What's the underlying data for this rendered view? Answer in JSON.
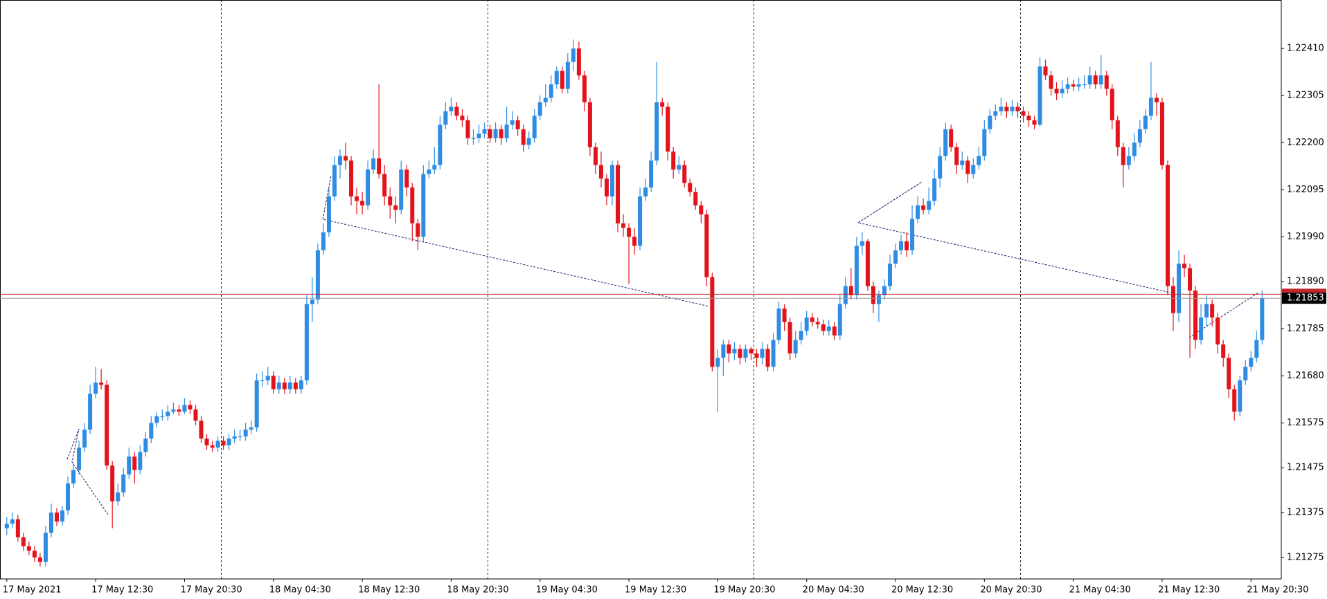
{
  "chart_data": {
    "type": "candlestick",
    "x": [
      "17 May 2021",
      null,
      null,
      null,
      null,
      null,
      null,
      null,
      null,
      null,
      null,
      null,
      null,
      null,
      null,
      null,
      "17 May 12:30",
      null,
      null,
      null,
      null,
      null,
      null,
      null,
      null,
      null,
      null,
      null,
      null,
      null,
      null,
      null,
      "17 May 20:30",
      null,
      null,
      null,
      null,
      null,
      null,
      null,
      null,
      null,
      null,
      null,
      null,
      null,
      null,
      null,
      "18 May 04:30",
      null,
      null,
      null,
      null,
      null,
      null,
      null,
      null,
      null,
      null,
      null,
      null,
      null,
      null,
      null,
      "18 May 12:30",
      null,
      null,
      null,
      null,
      null,
      null,
      null,
      null,
      null,
      null,
      null,
      null,
      null,
      null,
      null,
      "18 May 20:30",
      null,
      null,
      null,
      null,
      null,
      null,
      null,
      null,
      null,
      null,
      null,
      null,
      null,
      null,
      null,
      "19 May 04:30",
      null,
      null,
      null,
      null,
      null,
      null,
      null,
      null,
      null,
      null,
      null,
      null,
      null,
      null,
      null,
      "19 May 12:30",
      null,
      null,
      null,
      null,
      null,
      null,
      null,
      null,
      null,
      null,
      null,
      null,
      null,
      null,
      null,
      "19 May 20:30",
      null,
      null,
      null,
      null,
      null,
      null,
      null,
      null,
      null,
      null,
      null,
      null,
      null,
      null,
      null,
      "20 May 04:30",
      null,
      null,
      null,
      null,
      null,
      null,
      null,
      null,
      null,
      null,
      null,
      null,
      null,
      null,
      null,
      "20 May 12:30",
      null,
      null,
      null,
      null,
      null,
      null,
      null,
      null,
      null,
      null,
      null,
      null,
      null,
      null,
      null,
      "20 May 20:30",
      null,
      null,
      null,
      null,
      null,
      null,
      null,
      null,
      null,
      null,
      null,
      null,
      null,
      null,
      null,
      "21 May 04:30",
      null,
      null,
      null,
      null,
      null,
      null,
      null,
      null,
      null,
      null,
      null,
      null,
      null,
      null,
      null,
      "21 May 12:30",
      null,
      null,
      null,
      null,
      null,
      null,
      null,
      null,
      null,
      null,
      null,
      null,
      null,
      null,
      null,
      "21 May 20:30",
      null,
      null
    ],
    "open": [
      1.2134,
      1.2135,
      1.2136,
      1.2132,
      1.213,
      1.2129,
      1.21275,
      1.21265,
      1.2133,
      1.21375,
      1.21355,
      1.2138,
      1.2144,
      1.2147,
      1.2152,
      1.2156,
      1.2164,
      1.21665,
      1.2166,
      1.2148,
      1.214,
      1.2142,
      1.2146,
      1.215,
      1.2147,
      1.2151,
      1.2154,
      1.21575,
      1.2159,
      1.2159,
      1.216,
      1.21605,
      1.216,
      1.21615,
      1.21605,
      1.2158,
      1.2154,
      1.21525,
      1.2152,
      1.21535,
      1.21525,
      1.2154,
      1.21545,
      1.21545,
      1.2156,
      1.21565,
      1.2167,
      1.2167,
      1.2168,
      1.2165,
      1.21665,
      1.2165,
      1.21665,
      1.2165,
      1.2167,
      1.2184,
      1.2185,
      1.2196,
      1.22,
      1.2208,
      1.2215,
      1.2217,
      1.2216,
      1.2208,
      1.2207,
      1.2206,
      1.2214,
      1.22165,
      1.2213,
      1.2208,
      1.2206,
      1.2205,
      1.2214,
      1.221,
      1.2202,
      1.2199,
      1.2213,
      1.2214,
      1.2215,
      1.2224,
      1.2227,
      1.2228,
      1.2226,
      1.2225,
      1.2221,
      1.2221,
      1.2222,
      1.2223,
      1.2221,
      1.2223,
      1.2221,
      1.2224,
      1.2225,
      1.2223,
      1.22195,
      1.2221,
      1.2226,
      1.2229,
      1.223,
      1.2233,
      1.2236,
      1.2232,
      1.2238,
      1.2241,
      1.2235,
      1.2229,
      1.2219,
      1.2215,
      1.2212,
      1.2208,
      1.2215,
      1.2202,
      1.2201,
      1.2199,
      1.2197,
      1.2208,
      1.221,
      1.2216,
      1.2229,
      1.2228,
      1.2218,
      1.2214,
      1.2215,
      1.2211,
      1.2209,
      1.2206,
      1.2204,
      1.219,
      1.217,
      1.2172,
      1.2175,
      1.2173,
      1.2174,
      1.2172,
      1.2174,
      1.2173,
      1.2172,
      1.2174,
      1.217,
      1.2176,
      1.2183,
      1.218,
      1.2173,
      1.2176,
      1.2178,
      1.2181,
      1.218,
      1.21795,
      1.2178,
      1.2179,
      1.2177,
      1.2184,
      1.2188,
      1.2186,
      1.2197,
      1.2198,
      1.2188,
      1.2184,
      1.2186,
      1.2188,
      1.2193,
      1.2196,
      1.2198,
      1.2196,
      1.2203,
      1.2206,
      1.2205,
      1.2207,
      1.2212,
      1.2217,
      1.2223,
      1.2219,
      1.2215,
      1.2216,
      1.2213,
      1.2215,
      1.2217,
      1.2223,
      1.2226,
      1.2227,
      1.2228,
      1.2227,
      1.2228,
      1.2227,
      1.2226,
      1.2225,
      1.2224,
      1.2237,
      1.2235,
      1.2232,
      1.2231,
      1.2232,
      1.2233,
      1.22325,
      1.2233,
      1.2233,
      1.2235,
      1.2233,
      1.2235,
      1.2232,
      1.2225,
      1.2219,
      1.2215,
      1.2217,
      1.222,
      1.2223,
      1.2226,
      1.223,
      1.2229,
      1.2215,
      1.2188,
      1.2182,
      1.2193,
      1.2192,
      1.2187,
      1.2176,
      1.2181,
      1.2184,
      1.2181,
      1.2175,
      1.2172,
      1.2165,
      1.216,
      1.2167,
      1.217,
      1.2172,
      1.2176
    ],
    "high": [
      1.21365,
      1.21375,
      1.2137,
      1.2133,
      1.2131,
      1.213,
      1.21285,
      1.21345,
      1.21395,
      1.21385,
      1.2139,
      1.21455,
      1.21485,
      1.21535,
      1.21575,
      1.2166,
      1.217,
      1.21695,
      1.2167,
      1.2149,
      1.2144,
      1.21475,
      1.2152,
      1.2151,
      1.21525,
      1.21555,
      1.2159,
      1.216,
      1.21605,
      1.21615,
      1.2162,
      1.21615,
      1.2163,
      1.21625,
      1.21615,
      1.2159,
      1.2155,
      1.21535,
      1.21545,
      1.21545,
      1.2155,
      1.2156,
      1.2156,
      1.21575,
      1.2158,
      1.21685,
      1.2169,
      1.217,
      1.2169,
      1.2168,
      1.21675,
      1.2168,
      1.21675,
      1.2168,
      1.2186,
      1.219,
      1.21975,
      1.2202,
      1.221,
      1.2217,
      1.22185,
      1.222,
      1.2217,
      1.221,
      1.2209,
      1.2216,
      1.22185,
      1.2233,
      1.2215,
      1.221,
      1.2208,
      1.2216,
      1.2215,
      1.2211,
      1.2203,
      1.2215,
      1.2216,
      1.2219,
      1.2226,
      1.2229,
      1.223,
      1.2229,
      1.22275,
      1.2226,
      1.2223,
      1.2224,
      1.22245,
      1.2224,
      1.22245,
      1.2224,
      1.2228,
      1.2227,
      1.2226,
      1.2224,
      1.22225,
      1.22275,
      1.22305,
      1.2233,
      1.2235,
      1.2237,
      1.2237,
      1.224,
      1.2243,
      1.22425,
      1.2236,
      1.223,
      1.222,
      1.2218,
      1.2213,
      1.2216,
      1.2216,
      1.2204,
      1.2202,
      1.2201,
      1.221,
      1.2212,
      1.2218,
      1.2238,
      1.223,
      1.2229,
      1.2219,
      1.2217,
      1.2216,
      1.2212,
      1.221,
      1.2207,
      1.2205,
      1.2191,
      1.2174,
      1.2176,
      1.2176,
      1.21755,
      1.2175,
      1.2175,
      1.21745,
      1.2174,
      1.21755,
      1.2175,
      1.21775,
      1.21845,
      1.2184,
      1.2181,
      1.2178,
      1.218,
      1.21825,
      1.2182,
      1.2181,
      1.21805,
      1.21805,
      1.218,
      1.2186,
      1.219,
      1.2192,
      1.2199,
      1.22,
      1.21985,
      1.2189,
      1.2187,
      1.21895,
      1.2195,
      1.21975,
      1.21995,
      1.22,
      1.2206,
      1.2208,
      1.22075,
      1.221,
      1.2214,
      1.2219,
      1.22245,
      1.2224,
      1.222,
      1.2218,
      1.2217,
      1.22165,
      1.2219,
      1.2225,
      1.22275,
      1.22285,
      1.223,
      1.2229,
      1.22295,
      1.2229,
      1.2228,
      1.2227,
      1.2226,
      1.2239,
      1.22385,
      1.2236,
      1.22335,
      1.2234,
      1.22345,
      1.2234,
      1.22345,
      1.2235,
      1.2237,
      1.2236,
      1.22395,
      1.2236,
      1.2233,
      1.2226,
      1.222,
      1.2219,
      1.2222,
      1.2225,
      1.22275,
      1.2238,
      1.2231,
      1.223,
      1.2216,
      1.219,
      1.2196,
      1.2195,
      1.2193,
      1.2188,
      1.2184,
      1.2186,
      1.2185,
      1.2182,
      1.2176,
      1.2173,
      1.2166,
      1.2168,
      1.21715,
      1.21735,
      1.2178,
      1.2187
    ],
    "low": [
      1.21325,
      1.2134,
      1.2131,
      1.2129,
      1.2128,
      1.21265,
      1.21255,
      1.21255,
      1.2132,
      1.21345,
      1.21345,
      1.2137,
      1.2143,
      1.2146,
      1.2151,
      1.2155,
      1.2163,
      1.2165,
      1.2147,
      1.2134,
      1.2139,
      1.2141,
      1.2145,
      1.2144,
      1.2146,
      1.215,
      1.2153,
      1.21565,
      1.2158,
      1.2158,
      1.21595,
      1.2159,
      1.21595,
      1.21595,
      1.2157,
      1.2153,
      1.21515,
      1.2151,
      1.2151,
      1.21515,
      1.21515,
      1.2153,
      1.21535,
      1.21535,
      1.2155,
      1.21555,
      1.21655,
      1.2166,
      1.2164,
      1.2164,
      1.2164,
      1.2164,
      1.2164,
      1.2164,
      1.2166,
      1.218,
      1.2184,
      1.2195,
      1.2199,
      1.2207,
      1.2212,
      1.2214,
      1.2206,
      1.2204,
      1.2204,
      1.2205,
      1.2213,
      1.2212,
      1.2206,
      1.2203,
      1.2202,
      1.2204,
      1.2208,
      1.2198,
      1.2196,
      1.2198,
      1.2212,
      1.2213,
      1.2214,
      1.2223,
      1.2226,
      1.2225,
      1.22235,
      1.22195,
      1.22195,
      1.222,
      1.2221,
      1.222,
      1.222,
      1.22195,
      1.222,
      1.2223,
      1.22215,
      1.2218,
      1.22185,
      1.222,
      1.2225,
      1.2228,
      1.2229,
      1.2232,
      1.2231,
      1.2231,
      1.2236,
      1.2234,
      1.2227,
      1.2217,
      1.2213,
      1.221,
      1.2206,
      1.2206,
      1.22,
      1.2199,
      1.21885,
      1.2195,
      1.2196,
      1.2207,
      1.2209,
      1.2215,
      1.2226,
      1.2216,
      1.2212,
      1.2213,
      1.221,
      1.2208,
      1.2205,
      1.2202,
      1.2188,
      1.2169,
      1.216,
      1.2168,
      1.2171,
      1.21715,
      1.21705,
      1.2171,
      1.21715,
      1.217,
      1.21705,
      1.2169,
      1.2169,
      1.2175,
      1.2178,
      1.21715,
      1.2172,
      1.2175,
      1.2177,
      1.2179,
      1.21785,
      1.2177,
      1.2177,
      1.2176,
      1.2176,
      1.2183,
      1.2185,
      1.2185,
      1.2195,
      1.2187,
      1.2182,
      1.218,
      1.2185,
      1.2187,
      1.2192,
      1.2195,
      1.21945,
      1.2195,
      1.2202,
      1.2204,
      1.2204,
      1.2206,
      1.221,
      1.2216,
      1.2218,
      1.2213,
      1.2214,
      1.2211,
      1.2212,
      1.2214,
      1.2216,
      1.2222,
      1.2225,
      1.2226,
      1.22255,
      1.2226,
      1.22255,
      1.22245,
      1.22235,
      1.2223,
      1.22235,
      1.2234,
      1.22305,
      1.22295,
      1.223,
      1.2231,
      1.22315,
      1.22315,
      1.2232,
      1.2232,
      1.2232,
      1.2232,
      1.22305,
      1.2223,
      1.2217,
      1.221,
      1.2214,
      1.2216,
      1.2219,
      1.2222,
      1.2225,
      1.2226,
      1.2214,
      1.2186,
      1.2178,
      1.218,
      1.219,
      1.2172,
      1.2174,
      1.2175,
      1.2179,
      1.2179,
      1.2173,
      1.217,
      1.2163,
      1.2158,
      1.2159,
      1.2166,
      1.2169,
      1.2171,
      1.2175
    ],
    "close": [
      1.2135,
      1.2136,
      1.2132,
      1.213,
      1.2129,
      1.21275,
      1.21265,
      1.2133,
      1.21375,
      1.21355,
      1.2138,
      1.2144,
      1.2147,
      1.2152,
      1.2156,
      1.2164,
      1.21665,
      1.2166,
      1.2148,
      1.214,
      1.2142,
      1.2146,
      1.215,
      1.2147,
      1.2151,
      1.2154,
      1.21575,
      1.2159,
      1.2159,
      1.216,
      1.21605,
      1.216,
      1.21615,
      1.21605,
      1.2158,
      1.2154,
      1.21525,
      1.2152,
      1.21535,
      1.21525,
      1.2154,
      1.21545,
      1.21545,
      1.2156,
      1.21565,
      1.2167,
      1.2167,
      1.2168,
      1.2165,
      1.21665,
      1.2165,
      1.21665,
      1.2165,
      1.2167,
      1.2184,
      1.2185,
      1.2196,
      1.22,
      1.2208,
      1.2215,
      1.2217,
      1.2216,
      1.2208,
      1.2207,
      1.2206,
      1.2214,
      1.22165,
      1.2213,
      1.2208,
      1.2206,
      1.2205,
      1.2214,
      1.221,
      1.2202,
      1.2199,
      1.2213,
      1.2214,
      1.2215,
      1.2224,
      1.2227,
      1.2228,
      1.2226,
      1.2225,
      1.2221,
      1.2221,
      1.2222,
      1.2223,
      1.2221,
      1.2223,
      1.2221,
      1.2224,
      1.2225,
      1.2223,
      1.22195,
      1.2221,
      1.2226,
      1.2229,
      1.223,
      1.2233,
      1.2236,
      1.2232,
      1.2238,
      1.2241,
      1.2235,
      1.2229,
      1.2219,
      1.2215,
      1.2212,
      1.2208,
      1.2215,
      1.2202,
      1.2201,
      1.2199,
      1.2197,
      1.2208,
      1.221,
      1.2216,
      1.2229,
      1.2228,
      1.2218,
      1.2214,
      1.2215,
      1.2211,
      1.2209,
      1.2206,
      1.2204,
      1.219,
      1.217,
      1.2172,
      1.2175,
      1.2173,
      1.2174,
      1.2172,
      1.2174,
      1.2173,
      1.2172,
      1.2174,
      1.217,
      1.2176,
      1.2183,
      1.218,
      1.2173,
      1.2176,
      1.2178,
      1.2181,
      1.218,
      1.21795,
      1.2178,
      1.2179,
      1.2177,
      1.2184,
      1.2188,
      1.2186,
      1.2197,
      1.2198,
      1.2188,
      1.2184,
      1.2186,
      1.2188,
      1.2193,
      1.2196,
      1.2198,
      1.2196,
      1.2203,
      1.2206,
      1.2205,
      1.2207,
      1.2212,
      1.2217,
      1.2223,
      1.2219,
      1.2215,
      1.2216,
      1.2213,
      1.2215,
      1.2217,
      1.2223,
      1.2226,
      1.2227,
      1.2228,
      1.2227,
      1.2228,
      1.2227,
      1.2226,
      1.2225,
      1.2224,
      1.2237,
      1.2235,
      1.2232,
      1.2231,
      1.2232,
      1.2233,
      1.22325,
      1.2233,
      1.2233,
      1.2235,
      1.2233,
      1.2235,
      1.2232,
      1.2225,
      1.2219,
      1.2215,
      1.2217,
      1.222,
      1.2223,
      1.2226,
      1.223,
      1.2229,
      1.2215,
      1.2188,
      1.2182,
      1.2193,
      1.2192,
      1.2187,
      1.2176,
      1.2181,
      1.2184,
      1.2181,
      1.2175,
      1.2172,
      1.2165,
      1.216,
      1.2167,
      1.217,
      1.2172,
      1.2176,
      1.21853
    ],
    "up_color": "#2e8de3",
    "down_color": "#e3131b",
    "ylim": [
      1.21227,
      1.22512
    ],
    "yticks": [
      {
        "value": 1.2241,
        "label": "1.22410"
      },
      1.22305,
      {
        "value": 1.222,
        "label": "1.22200"
      },
      1.22095,
      {
        "value": 1.2199,
        "label": "1.21990"
      },
      {
        "value": 1.2189,
        "label": "1.21890"
      },
      1.21785,
      {
        "value": 1.2168,
        "label": "1.21680"
      },
      1.21575,
      1.21475,
      1.21375,
      1.21275
    ],
    "bid": 1.21853,
    "ask": 1.21862,
    "grid": false
  }
}
